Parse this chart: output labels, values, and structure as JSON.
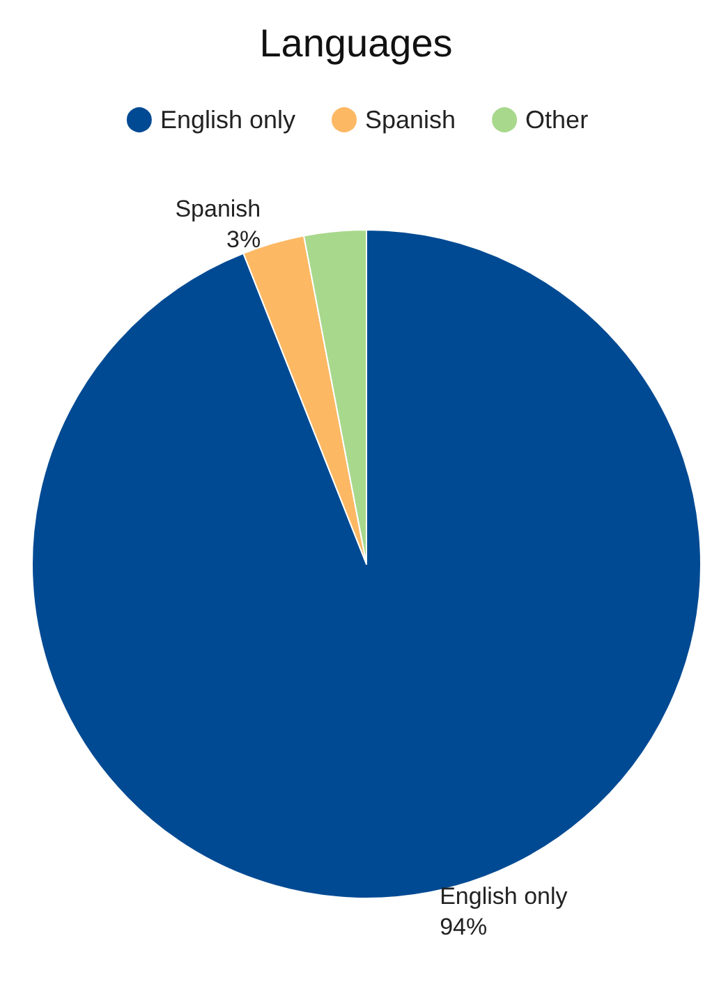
{
  "chart_data": {
    "type": "pie",
    "title": "Languages",
    "categories": [
      "English only",
      "Spanish",
      "Other"
    ],
    "values": [
      94,
      3,
      3
    ],
    "colors": [
      "#004a93",
      "#fdb863",
      "#a8d88c"
    ],
    "value_labels": [
      "94%",
      "3%",
      null
    ],
    "legend": "top"
  }
}
